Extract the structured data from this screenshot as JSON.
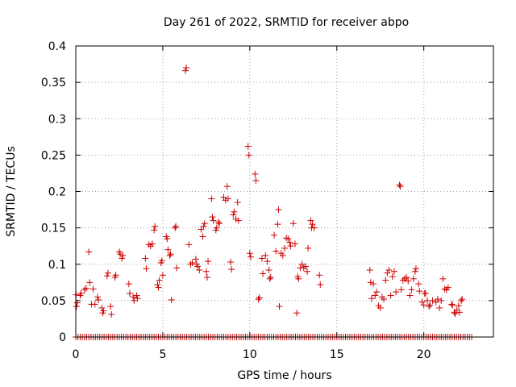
{
  "chart_data": {
    "type": "scatter",
    "title": "Day 261 of 2022, SRMTID for receiver abpo",
    "xlabel": "GPS time / hours",
    "ylabel": "SRMTID / TECUs",
    "xlim": [
      0,
      24
    ],
    "ylim": [
      0,
      0.4
    ],
    "xticks": [
      0,
      5,
      10,
      15,
      20
    ],
    "xtick_labels": [
      "0",
      "5",
      "10",
      "15",
      "20"
    ],
    "yticks": [
      0,
      0.05,
      0.1,
      0.15,
      0.2,
      0.25,
      0.3,
      0.35,
      0.4
    ],
    "ytick_labels": [
      "0",
      "0.05",
      "0.1",
      "0.15",
      "0.2",
      "0.25",
      "0.3",
      "0.35",
      "0.4"
    ],
    "grid": true,
    "marker": "plus",
    "colors": {
      "series": "#cc0000",
      "grid": "#a0a0a0",
      "axes": "#000000"
    },
    "zero_row": {
      "y": 0,
      "x_start": 0.0,
      "x_end": 22.8,
      "x_step": 0.125
    },
    "series": [
      {
        "name": "SRMTID",
        "points": [
          [
            0.02,
            0.058
          ],
          [
            0.04,
            0.042
          ],
          [
            0.08,
            0.047
          ],
          [
            0.25,
            0.057
          ],
          [
            0.3,
            0.06
          ],
          [
            0.5,
            0.065
          ],
          [
            0.6,
            0.067
          ],
          [
            0.75,
            0.117
          ],
          [
            0.8,
            0.075
          ],
          [
            0.9,
            0.045
          ],
          [
            1.0,
            0.066
          ],
          [
            1.1,
            0.045
          ],
          [
            1.25,
            0.055
          ],
          [
            1.3,
            0.051
          ],
          [
            1.5,
            0.04
          ],
          [
            1.55,
            0.033
          ],
          [
            1.6,
            0.036
          ],
          [
            1.8,
            0.084
          ],
          [
            1.85,
            0.088
          ],
          [
            2.0,
            0.042
          ],
          [
            2.05,
            0.031
          ],
          [
            2.25,
            0.082
          ],
          [
            2.3,
            0.085
          ],
          [
            2.5,
            0.117
          ],
          [
            2.55,
            0.114
          ],
          [
            2.65,
            0.108
          ],
          [
            2.7,
            0.112
          ],
          [
            3.05,
            0.073
          ],
          [
            3.1,
            0.06
          ],
          [
            3.3,
            0.055
          ],
          [
            3.35,
            0.05
          ],
          [
            3.5,
            0.057
          ],
          [
            3.55,
            0.053
          ],
          [
            4.0,
            0.108
          ],
          [
            4.05,
            0.094
          ],
          [
            4.2,
            0.127
          ],
          [
            4.3,
            0.125
          ],
          [
            4.4,
            0.128
          ],
          [
            4.5,
            0.147
          ],
          [
            4.55,
            0.152
          ],
          [
            4.7,
            0.072
          ],
          [
            4.75,
            0.068
          ],
          [
            4.8,
            0.078
          ],
          [
            4.9,
            0.102
          ],
          [
            4.95,
            0.105
          ],
          [
            5.0,
            0.085
          ],
          [
            5.2,
            0.138
          ],
          [
            5.25,
            0.135
          ],
          [
            5.3,
            0.12
          ],
          [
            5.4,
            0.112
          ],
          [
            5.45,
            0.114
          ],
          [
            5.5,
            0.051
          ],
          [
            5.7,
            0.15
          ],
          [
            5.75,
            0.152
          ],
          [
            5.8,
            0.095
          ],
          [
            6.3,
            0.366
          ],
          [
            6.35,
            0.37
          ],
          [
            6.5,
            0.127
          ],
          [
            6.6,
            0.1
          ],
          [
            6.7,
            0.102
          ],
          [
            6.9,
            0.107
          ],
          [
            6.95,
            0.1
          ],
          [
            7.0,
            0.097
          ],
          [
            7.1,
            0.092
          ],
          [
            7.2,
            0.148
          ],
          [
            7.3,
            0.138
          ],
          [
            7.35,
            0.152
          ],
          [
            7.4,
            0.156
          ],
          [
            7.5,
            0.09
          ],
          [
            7.55,
            0.082
          ],
          [
            7.6,
            0.104
          ],
          [
            7.8,
            0.19
          ],
          [
            7.85,
            0.165
          ],
          [
            7.9,
            0.16
          ],
          [
            8.05,
            0.147
          ],
          [
            8.1,
            0.15
          ],
          [
            8.2,
            0.158
          ],
          [
            8.25,
            0.156
          ],
          [
            8.5,
            0.192
          ],
          [
            8.6,
            0.188
          ],
          [
            8.7,
            0.207
          ],
          [
            8.75,
            0.19
          ],
          [
            8.9,
            0.103
          ],
          [
            8.95,
            0.093
          ],
          [
            9.05,
            0.168
          ],
          [
            9.1,
            0.172
          ],
          [
            9.2,
            0.162
          ],
          [
            9.3,
            0.185
          ],
          [
            9.35,
            0.16
          ],
          [
            9.9,
            0.262
          ],
          [
            9.95,
            0.25
          ],
          [
            10.0,
            0.115
          ],
          [
            10.05,
            0.11
          ],
          [
            10.3,
            0.224
          ],
          [
            10.35,
            0.215
          ],
          [
            10.5,
            0.052
          ],
          [
            10.55,
            0.054
          ],
          [
            10.7,
            0.108
          ],
          [
            10.75,
            0.087
          ],
          [
            10.9,
            0.112
          ],
          [
            11.0,
            0.104
          ],
          [
            11.1,
            0.092
          ],
          [
            11.15,
            0.08
          ],
          [
            11.2,
            0.082
          ],
          [
            11.4,
            0.14
          ],
          [
            11.5,
            0.118
          ],
          [
            11.6,
            0.155
          ],
          [
            11.65,
            0.175
          ],
          [
            11.7,
            0.042
          ],
          [
            11.8,
            0.115
          ],
          [
            11.9,
            0.112
          ],
          [
            12.0,
            0.122
          ],
          [
            12.1,
            0.136
          ],
          [
            12.2,
            0.135
          ],
          [
            12.3,
            0.13
          ],
          [
            12.35,
            0.125
          ],
          [
            12.5,
            0.156
          ],
          [
            12.6,
            0.128
          ],
          [
            12.7,
            0.033
          ],
          [
            12.75,
            0.083
          ],
          [
            12.8,
            0.08
          ],
          [
            12.9,
            0.095
          ],
          [
            13.0,
            0.1
          ],
          [
            13.1,
            0.095
          ],
          [
            13.2,
            0.097
          ],
          [
            13.3,
            0.09
          ],
          [
            13.35,
            0.122
          ],
          [
            13.5,
            0.16
          ],
          [
            13.55,
            0.15
          ],
          [
            13.6,
            0.155
          ],
          [
            13.7,
            0.15
          ],
          [
            14.0,
            0.085
          ],
          [
            14.05,
            0.072
          ],
          [
            16.9,
            0.092
          ],
          [
            16.95,
            0.075
          ],
          [
            17.0,
            0.053
          ],
          [
            17.1,
            0.073
          ],
          [
            17.2,
            0.057
          ],
          [
            17.3,
            0.062
          ],
          [
            17.4,
            0.043
          ],
          [
            17.5,
            0.04
          ],
          [
            17.6,
            0.055
          ],
          [
            17.7,
            0.052
          ],
          [
            17.8,
            0.078
          ],
          [
            17.9,
            0.088
          ],
          [
            18.0,
            0.092
          ],
          [
            18.1,
            0.057
          ],
          [
            18.2,
            0.083
          ],
          [
            18.3,
            0.09
          ],
          [
            18.4,
            0.062
          ],
          [
            18.6,
            0.209
          ],
          [
            18.65,
            0.207
          ],
          [
            18.7,
            0.065
          ],
          [
            18.8,
            0.078
          ],
          [
            18.9,
            0.08
          ],
          [
            19.0,
            0.082
          ],
          [
            19.1,
            0.077
          ],
          [
            19.2,
            0.057
          ],
          [
            19.3,
            0.065
          ],
          [
            19.4,
            0.08
          ],
          [
            19.5,
            0.09
          ],
          [
            19.55,
            0.094
          ],
          [
            19.7,
            0.073
          ],
          [
            19.75,
            0.063
          ],
          [
            19.9,
            0.048
          ],
          [
            20.0,
            0.044
          ],
          [
            20.05,
            0.06
          ],
          [
            20.1,
            0.06
          ],
          [
            20.2,
            0.05
          ],
          [
            20.3,
            0.042
          ],
          [
            20.35,
            0.044
          ],
          [
            20.5,
            0.05
          ],
          [
            20.7,
            0.048
          ],
          [
            20.8,
            0.052
          ],
          [
            20.9,
            0.04
          ],
          [
            21.0,
            0.05
          ],
          [
            21.1,
            0.08
          ],
          [
            21.2,
            0.066
          ],
          [
            21.3,
            0.065
          ],
          [
            21.4,
            0.068
          ],
          [
            21.6,
            0.045
          ],
          [
            21.65,
            0.044
          ],
          [
            21.75,
            0.034
          ],
          [
            21.8,
            0.032
          ],
          [
            21.9,
            0.037
          ],
          [
            22.0,
            0.043
          ],
          [
            22.05,
            0.034
          ],
          [
            22.15,
            0.05
          ],
          [
            22.2,
            0.052
          ]
        ]
      }
    ]
  }
}
